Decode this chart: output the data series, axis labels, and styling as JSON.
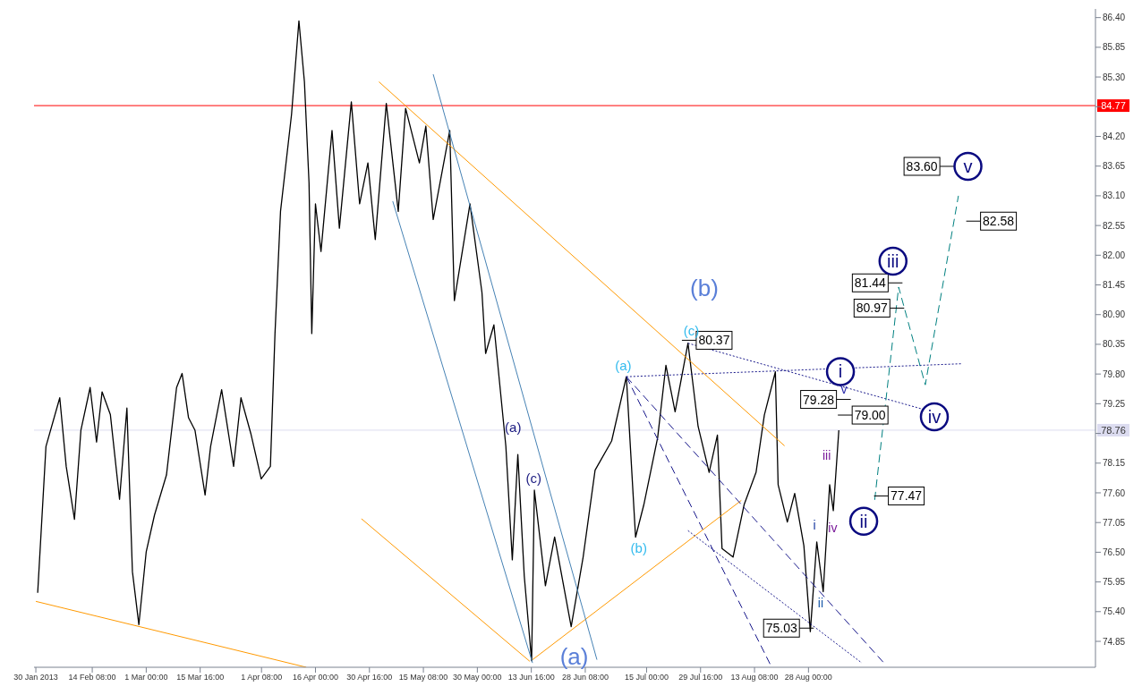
{
  "chart_data": {
    "type": "line",
    "marker": "none",
    "xlim": [
      "2013-01-29T12:00",
      "2013-11-14T00:00"
    ],
    "xticks": [
      {
        "value": "2013-01-30",
        "label": "30 Jan 2013"
      },
      {
        "value": "2013-02-14T08:00",
        "label": "14 Feb 08:00"
      },
      {
        "value": "2013-03-01",
        "label": "1 Mar 00:00"
      },
      {
        "value": "2013-03-15T16:00",
        "label": "15 Mar 16:00"
      },
      {
        "value": "2013-04-01T08:00",
        "label": "1 Apr 08:00"
      },
      {
        "value": "2013-04-16",
        "label": "16 Apr 00:00"
      },
      {
        "value": "2013-04-30T16:00",
        "label": "30 Apr 16:00"
      },
      {
        "value": "2013-05-15T08:00",
        "label": "15 May 08:00"
      },
      {
        "value": "2013-05-30",
        "label": "30 May 00:00"
      },
      {
        "value": "2013-06-13T16:00",
        "label": "13 Jun 16:00"
      },
      {
        "value": "2013-06-28T08:00",
        "label": "28 Jun 08:00"
      },
      {
        "value": "2013-07-15",
        "label": "15 Jul 00:00"
      },
      {
        "value": "2013-07-29T16:00",
        "label": "29 Jul 16:00"
      },
      {
        "value": "2013-08-13T08:00",
        "label": "13 Aug 08:00"
      },
      {
        "value": "2013-08-28",
        "label": "28 Aug 00:00"
      }
    ],
    "ylim": [
      74.37,
      86.56
    ],
    "yticks": [
      74.85,
      {
        "value": 75.4,
        "label": "75.40"
      },
      75.95,
      {
        "value": 76.5,
        "label": "76.50"
      },
      77.05,
      {
        "value": 77.6,
        "label": "77.60"
      },
      78.15,
      {
        "value": 78.7,
        "label": null
      },
      79.25,
      {
        "value": 79.8,
        "label": "79.80"
      },
      80.35,
      {
        "value": 80.9,
        "label": "80.90"
      },
      81.45,
      {
        "value": 82,
        "label": "82.00"
      },
      82.55,
      {
        "value": 83.1,
        "label": "83.10"
      },
      83.65,
      {
        "value": 84.2,
        "label": "84.20"
      },
      {
        "value": 84.75,
        "label": null
      },
      {
        "value": 85.3,
        "label": "85.30"
      },
      85.85,
      {
        "value": 86.4,
        "label": "86.40"
      }
    ],
    "ref_lines": [
      {
        "axis": "y",
        "value": 84.77,
        "label": "84.77",
        "color": "#ff0000"
      },
      {
        "axis": "y",
        "value": 78.76,
        "label": "78.76",
        "color": "#dcdcf0"
      }
    ],
    "series": [
      {
        "color": "#000000",
        "line_style": "solid",
        "x": [
          "2013-01-30T12:00",
          "2013-02-01T18:00",
          "2013-02-05T12:00",
          "2013-02-07T06:00",
          "2013-02-09T12:00",
          "2013-02-11T06:00",
          "2013-02-13T18:00",
          "2013-02-15T12:00",
          "2013-02-17T00:00",
          "2013-02-19T06:00",
          "2013-02-21T18:00",
          "2013-02-23T18:00",
          "2013-02-25T06:00",
          "2013-02-27T00:00",
          "2013-03-01T00:00",
          "2013-03-03T06:00",
          "2013-03-06T12:00",
          "2013-03-09T06:00",
          "2013-03-10T18:00",
          "2013-03-12T12:00",
          "2013-03-14T06:00",
          "2013-03-17T00:00",
          "2013-03-18T12:00",
          "2013-03-21T12:00",
          "2013-03-24T18:00",
          "2013-03-26T18:00",
          "2013-03-29T12:00",
          "2013-04-01T06:00",
          "2013-04-03T18:00",
          "2013-04-05T00:00",
          "2013-04-06T12:00",
          "2013-04-09T12:00",
          "2013-04-11T12:00",
          "2013-04-13T00:00",
          "2013-04-14T06:00",
          "2013-04-15T00:00",
          "2013-04-16T00:00",
          "2013-04-17T12:00",
          "2013-04-20T12:00",
          "2013-04-22T12:00",
          "2013-04-25T18:00",
          "2013-04-28T00:00",
          "2013-04-30T06:00",
          "2013-05-02T06:00",
          "2013-05-05T06:00",
          "2013-05-08T12:00",
          "2013-05-10T12:00",
          "2013-05-14T06:00",
          "2013-05-16T00:00",
          "2013-05-18T00:00",
          "2013-05-22T12:00",
          "2013-05-23T18:00",
          "2013-05-28T00:00",
          "2013-05-31T06:00",
          "2013-06-01T06:00",
          "2013-06-03T12:00",
          "2013-06-05T00:00",
          "2013-06-06T18:00",
          "2013-06-08T12:00",
          "2013-06-10T00:00",
          "2013-06-11T18:00",
          "2013-06-13T18:00",
          "2013-06-14T12:00",
          "2013-06-17T12:00",
          "2013-06-20T00:00",
          "2013-06-24T12:00",
          "2013-06-27T18:00",
          "2013-07-01T00:00",
          "2013-07-05T12:00",
          "2013-07-09T12:00",
          "2013-07-12T00:00",
          "2013-07-14T06:00",
          "2013-07-18T00:00",
          "2013-07-20T06:00",
          "2013-07-22T18:00",
          "2013-07-26T06:00",
          "2013-07-29T00:00",
          "2013-08-01T00:00",
          "2013-08-03T06:00",
          "2013-08-04T12:00",
          "2013-08-07T12:00",
          "2013-08-10T12:00",
          "2013-08-13T18:00",
          "2013-08-16T00:00",
          "2013-08-19T00:00",
          "2013-08-19T18:00",
          "2013-08-22T06:00",
          "2013-08-24T06:00",
          "2013-08-26T18:00",
          "2013-08-28T12:00",
          "2013-08-30T06:00",
          "2013-09-01T00:00",
          "2013-09-02T18:00",
          "2013-09-03T18:00",
          "2013-09-05T06:00"
        ],
        "values": [
          75.75,
          78.46,
          79.36,
          78.09,
          77.11,
          78.76,
          79.55,
          78.54,
          79.47,
          79.05,
          77.48,
          79.17,
          76.14,
          75.16,
          76.51,
          77.19,
          77.93,
          79.55,
          79.81,
          78.99,
          78.76,
          77.56,
          78.46,
          79.51,
          78.09,
          79.36,
          78.68,
          77.86,
          78.09,
          80.55,
          82.81,
          84.61,
          86.34,
          85.21,
          83.34,
          80.55,
          82.95,
          82.07,
          84.31,
          82.5,
          84.84,
          82.95,
          83.71,
          82.29,
          84.81,
          82.81,
          84.72,
          83.71,
          84.39,
          82.66,
          84.31,
          81.16,
          82.95,
          81.31,
          80.18,
          80.71,
          79.67,
          78.46,
          76.36,
          78.31,
          76.06,
          74.49,
          77.65,
          75.88,
          76.78,
          75.12,
          76.41,
          78.02,
          78.56,
          79.75,
          76.78,
          77.38,
          78.62,
          79.96,
          79.1,
          80.37,
          78.83,
          77.98,
          78.67,
          76.57,
          76.41,
          77.38,
          77.98,
          79.04,
          79.84,
          77.75,
          77.06,
          77.59,
          76.62,
          75.03,
          76.69,
          75.77,
          77.75,
          77.27,
          78.76
        ]
      },
      {
        "type": "line",
        "color": "#ff9900",
        "line_style": "solid",
        "x": [
          "2013-01-30",
          "2013-04-13T12:00"
        ],
        "values": [
          75.59,
          74.37
        ]
      },
      {
        "type": "line",
        "color": "#ff9900",
        "line_style": "solid",
        "x": [
          "2013-05-03T06:00",
          "2013-08-21T12:00"
        ],
        "values": [
          85.21,
          78.47
        ]
      },
      {
        "type": "line",
        "color": "#ff9900",
        "line_style": "solid",
        "x": [
          "2013-04-28T12:00",
          "2013-06-13T06:00"
        ],
        "values": [
          77.12,
          74.48
        ]
      },
      {
        "type": "line",
        "color": "#ff9900",
        "line_style": "solid",
        "x": [
          "2013-06-14",
          "2013-08-09T18:00"
        ],
        "values": [
          74.51,
          77.46
        ]
      },
      {
        "type": "line",
        "color": "#4682b4",
        "line_style": "solid",
        "x": [
          "2013-05-18",
          "2013-07-01T12:00"
        ],
        "values": [
          85.35,
          74.51
        ]
      },
      {
        "type": "line",
        "color": "#4682b4",
        "line_style": "solid",
        "x": [
          "2013-05-07",
          "2013-06-14"
        ],
        "values": [
          83.0,
          74.45
        ]
      },
      {
        "type": "line",
        "color": "#1a1a8c",
        "line_style": "dashed",
        "x": [
          "2013-07-09T12:00",
          "2013-08-18"
        ],
        "values": [
          79.75,
          74.37
        ]
      },
      {
        "type": "line",
        "color": "#1a1a8c",
        "line_style": "dashed",
        "x": [
          "2013-07-09T12:00",
          "2013-09-17T12:00"
        ],
        "values": [
          79.75,
          74.45
        ]
      },
      {
        "type": "line",
        "color": "#1a1a8c",
        "line_style": "dotted",
        "x": [
          "2013-07-26T06:00",
          "2013-09-11T12:00"
        ],
        "values": [
          76.9,
          74.45
        ]
      },
      {
        "type": "line",
        "color": "#1a1a8c",
        "line_style": "dotted",
        "x": [
          "2013-07-09T12:00",
          "2013-10-08T12:00"
        ],
        "values": [
          79.75,
          79.99
        ]
      },
      {
        "type": "line",
        "color": "#1a1a8c",
        "line_style": "dotted",
        "x": [
          "2013-07-26T06:00",
          "2013-09-28"
        ],
        "values": [
          80.37,
          79.15
        ]
      },
      {
        "type": "line",
        "color": "#008080",
        "line_style": "dashed",
        "x": [
          "2013-09-15",
          "2013-09-21T12:00",
          "2013-09-28T18:00",
          "2013-10-07T18:00"
        ],
        "values": [
          77.47,
          81.41,
          79.6,
          83.1
        ]
      }
    ],
    "annotations": [
      "80.37",
      "79.28",
      "79.00",
      "77.47",
      "75.03",
      "81.44",
      "80.97",
      "83.60",
      "82.58",
      "(b)",
      "(a)",
      "(a)",
      "(b)",
      "(c)",
      "(a)",
      "(c)",
      "i",
      "ii",
      "iii",
      "iv",
      "v",
      "i",
      "ii",
      "iii",
      "iv",
      "v"
    ]
  }
}
